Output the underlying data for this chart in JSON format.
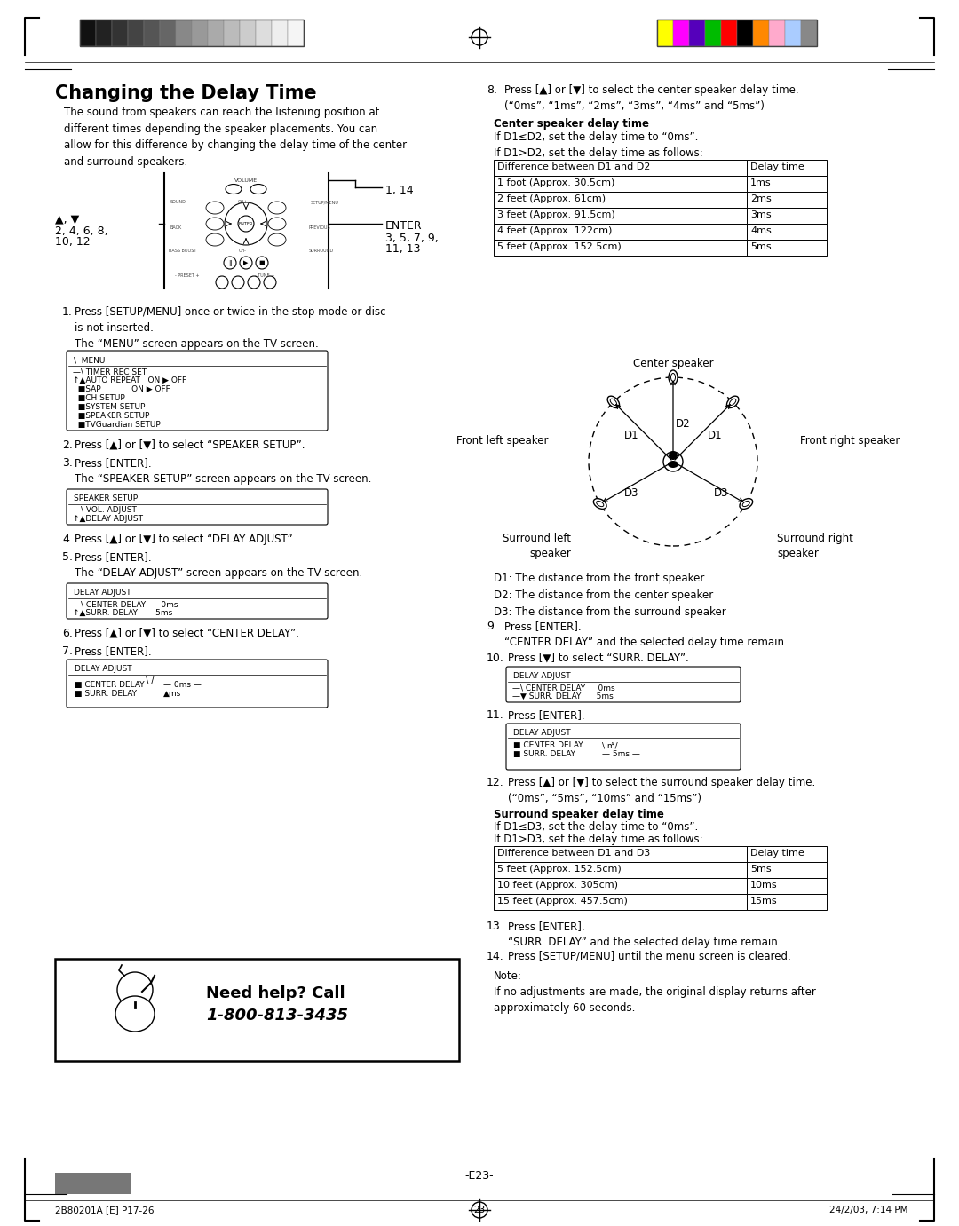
{
  "title": "Changing the Delay Time",
  "intro_text": "The sound from speakers can reach the listening position at\ndifferent times depending the speaker placements. You can\nallow for this difference by changing the delay time of the center\nand surround speakers.",
  "step8": "Press [▲] or [▼] to select the center speaker delay time.\n(“0ms”, “1ms”, “2ms”, “3ms”, “4ms” and “5ms”)",
  "center_delay_header": "Center speaker delay time",
  "center_delay_d1_d2_le": "If D1≤D2, set the delay time to “0ms”.",
  "center_delay_d1_d2_gt": "If D1>D2, set the delay time as follows:",
  "center_table_headers": [
    "Difference between D1 and D2",
    "Delay time"
  ],
  "center_table_rows": [
    [
      "1 foot (Approx. 30.5cm)",
      "1ms"
    ],
    [
      "2 feet (Approx. 61cm)",
      "2ms"
    ],
    [
      "3 feet (Approx. 91.5cm)",
      "3ms"
    ],
    [
      "4 feet (Approx. 122cm)",
      "4ms"
    ],
    [
      "5 feet (Approx. 152.5cm)",
      "5ms"
    ]
  ],
  "d1_distances_label": "D1: The distance from the front speaker\nD2: The distance from the center speaker\nD3: The distance from the surround speaker",
  "surround_delay_header": "Surround speaker delay time",
  "surround_delay_d1_d3_le": "If D1≤D3, set the delay time to “0ms”.",
  "surround_delay_d1_d3_gt": "If D1>D3, set the delay time as follows:",
  "surround_table_headers": [
    "Difference between D1 and D3",
    "Delay time"
  ],
  "surround_table_rows": [
    [
      "5 feet (Approx. 152.5cm)",
      "5ms"
    ],
    [
      "10 feet (Approx. 305cm)",
      "10ms"
    ],
    [
      "15 feet (Approx. 457.5cm)",
      "15ms"
    ]
  ],
  "note_text": "Note:\nIf no adjustments are made, the original display returns after\napproximately 60 seconds.",
  "page_num": "-E23-",
  "footer_left": "2B80201A [E] P17-26",
  "footer_center": "23",
  "footer_right": "24/2/03, 7:14 PM",
  "help_line1": "Need help? Call",
  "help_line2": "1-800-813-3435",
  "bg_color": "#ffffff",
  "text_color": "#000000",
  "gray_colors": [
    "#111111",
    "#222222",
    "#333333",
    "#444444",
    "#555555",
    "#666666",
    "#888888",
    "#999999",
    "#aaaaaa",
    "#bbbbbb",
    "#cccccc",
    "#dddddd",
    "#eeeeee",
    "#f5f5f5"
  ],
  "color_colors": [
    "#ffff00",
    "#ff00ff",
    "#5500bb",
    "#00bb00",
    "#ff0000",
    "#000000",
    "#ff8800",
    "#ffaacc",
    "#aaccff",
    "#888888"
  ]
}
